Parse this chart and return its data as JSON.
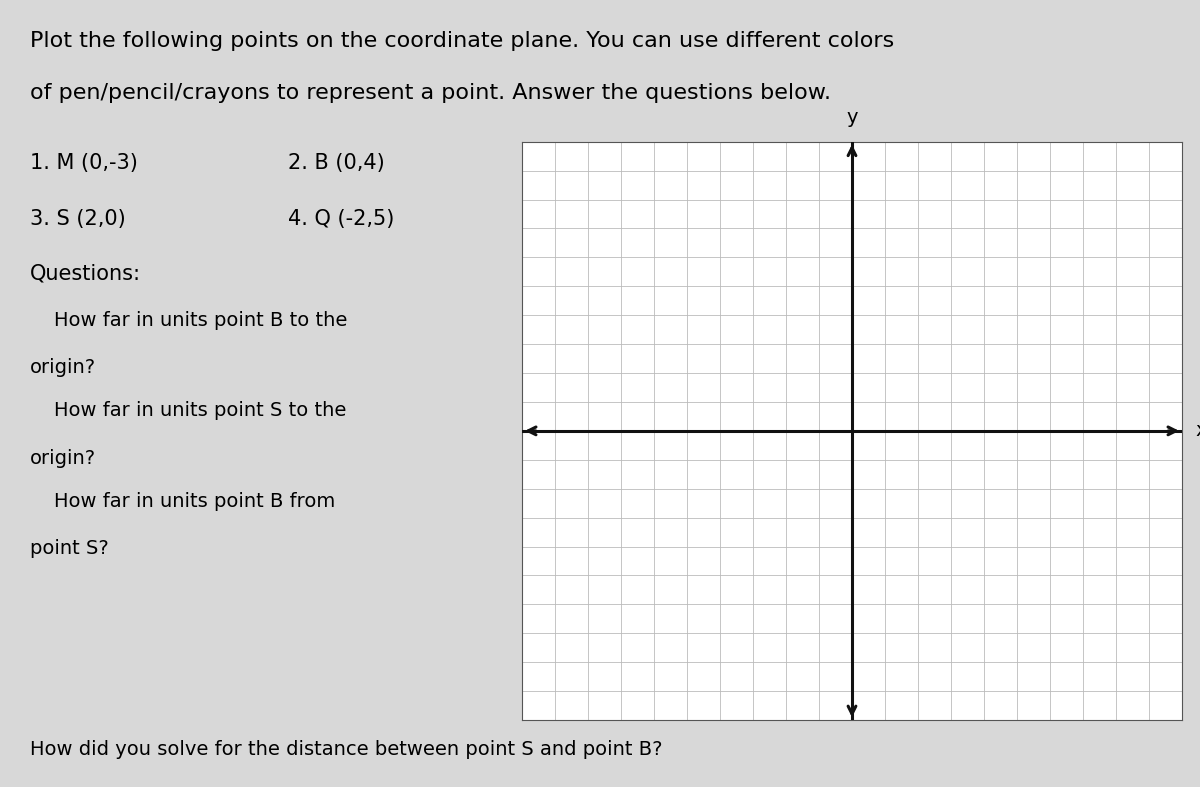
{
  "title_line1": "Plot the following points on the coordinate plane. You can use different colors",
  "title_line2": "of pen/pencil/crayons to represent a point. Answer the questions below.",
  "points": [
    "1. M (0,-3)",
    "2. B (0,4)",
    "3. S (2,0)",
    "4. Q (-2,5)"
  ],
  "questions_header": "Questions:",
  "q1_line1": "How far in units point B to the",
  "q1_line2": "origin?",
  "q2_line1": "How far in units point S to the",
  "q2_line2": "origin?",
  "q3_line1": "How far in units point B from",
  "q3_line2": "point S?",
  "q4": "How did you solve for the distance between point S and point B?",
  "grid_xlim": [
    -10,
    10
  ],
  "grid_ylim": [
    -10,
    10
  ],
  "grid_color": "#bbbbbb",
  "axis_color": "#111111",
  "page_bg": "#d8d8d8",
  "font_size_title": 16,
  "font_size_points": 15,
  "font_size_q": 14
}
